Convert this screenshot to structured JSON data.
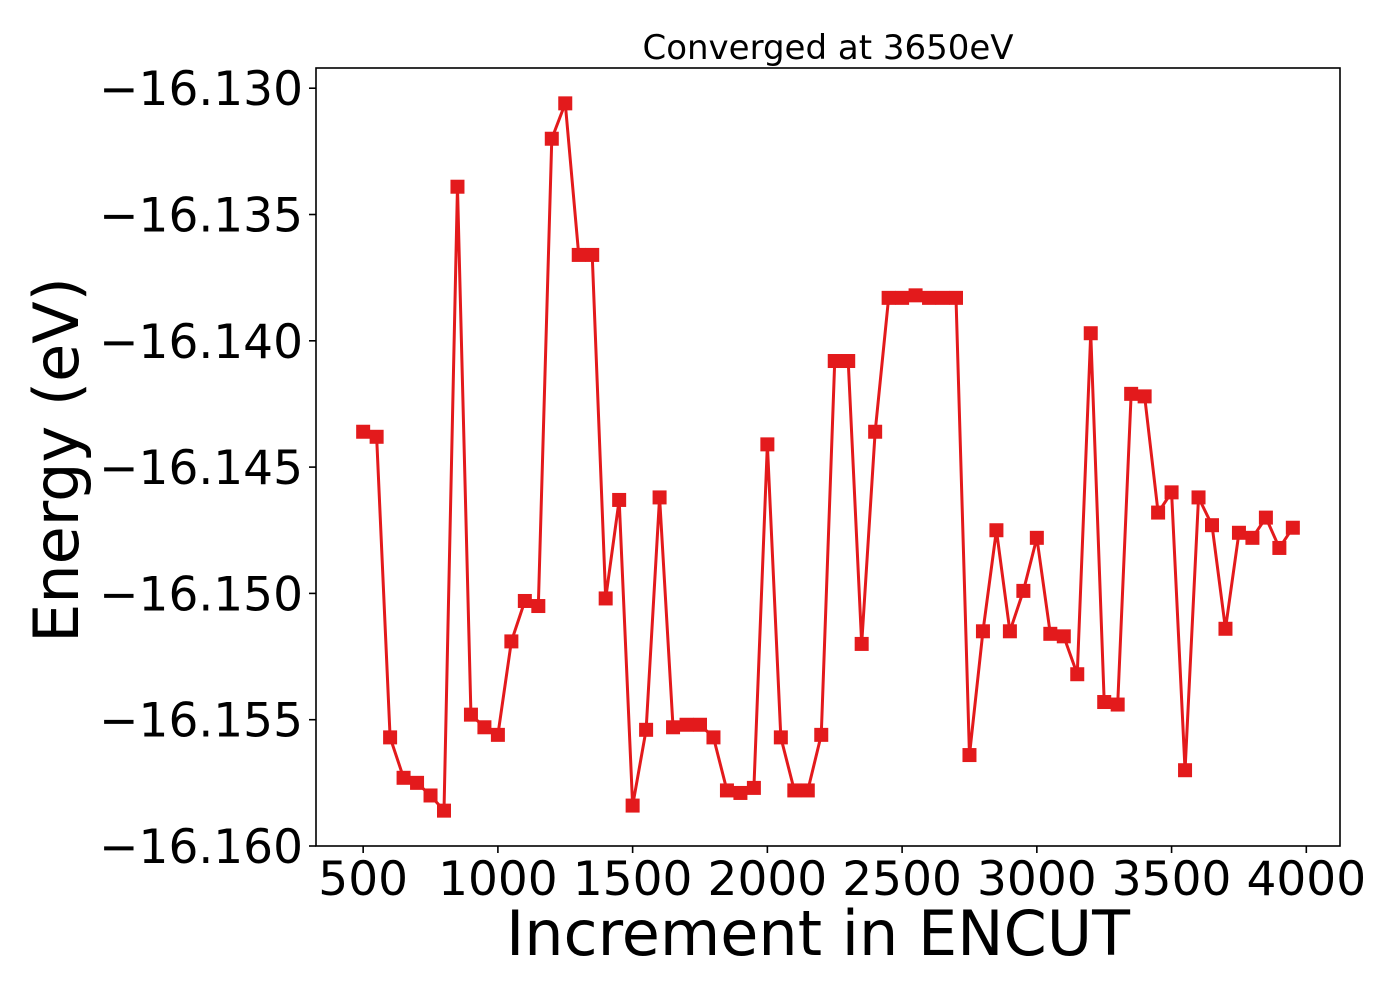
{
  "chart_data": {
    "type": "line",
    "title": "Converged at 3650eV",
    "xlabel": "Increment in ENCUT",
    "ylabel": "Energy (eV)",
    "xlim": [
      325,
      4125
    ],
    "ylim": [
      -16.16,
      -16.1292
    ],
    "xticks": [
      500,
      1000,
      1500,
      2000,
      2500,
      3000,
      3500,
      4000
    ],
    "yticks": [
      -16.13,
      -16.135,
      -16.14,
      -16.145,
      -16.15,
      -16.155,
      -16.16
    ],
    "xtick_labels": [
      "500",
      "1000",
      "1500",
      "2000",
      "2500",
      "3000",
      "3500",
      "4000"
    ],
    "ytick_labels": [
      "−16.130",
      "−16.135",
      "−16.140",
      "−16.145",
      "−16.150",
      "−16.155",
      "−16.160"
    ],
    "grid": false,
    "legend": null,
    "marker": "square",
    "color": "#e31a1c",
    "x": [
      500,
      550,
      600,
      650,
      700,
      750,
      800,
      850,
      900,
      950,
      1000,
      1050,
      1100,
      1150,
      1200,
      1250,
      1300,
      1350,
      1400,
      1450,
      1500,
      1550,
      1600,
      1650,
      1700,
      1750,
      1800,
      1850,
      1900,
      1950,
      2000,
      2050,
      2100,
      2150,
      2200,
      2250,
      2300,
      2350,
      2400,
      2450,
      2500,
      2550,
      2600,
      2650,
      2700,
      2750,
      2800,
      2850,
      2900,
      2950,
      3000,
      3050,
      3100,
      3150,
      3200,
      3250,
      3300,
      3350,
      3400,
      3450,
      3500,
      3550,
      3600,
      3650,
      3700,
      3750,
      3800,
      3850,
      3900,
      3950
    ],
    "y": [
      -16.1436,
      -16.1438,
      -16.1557,
      -16.1573,
      -16.1575,
      -16.158,
      -16.1586,
      -16.1339,
      -16.1548,
      -16.1553,
      -16.1556,
      -16.1519,
      -16.1503,
      -16.1505,
      -16.132,
      -16.1306,
      -16.1366,
      -16.1366,
      -16.1502,
      -16.1463,
      -16.1584,
      -16.1554,
      -16.1462,
      -16.1553,
      -16.1552,
      -16.1552,
      -16.1557,
      -16.1578,
      -16.1579,
      -16.1577,
      -16.1441,
      -16.1557,
      -16.1578,
      -16.1578,
      -16.1556,
      -16.1408,
      -16.1408,
      -16.152,
      -16.1436,
      -16.1383,
      -16.1383,
      -16.1382,
      -16.1383,
      -16.1383,
      -16.1383,
      -16.1564,
      -16.1515,
      -16.1475,
      -16.1515,
      -16.1499,
      -16.1478,
      -16.1516,
      -16.1517,
      -16.1532,
      -16.1397,
      -16.1543,
      -16.1544,
      -16.1421,
      -16.1422,
      -16.1468,
      -16.146,
      -16.157,
      -16.1462,
      -16.1473,
      -16.1514,
      -16.1476,
      -16.1478,
      -16.147,
      -16.1482,
      -16.1474
    ]
  }
}
